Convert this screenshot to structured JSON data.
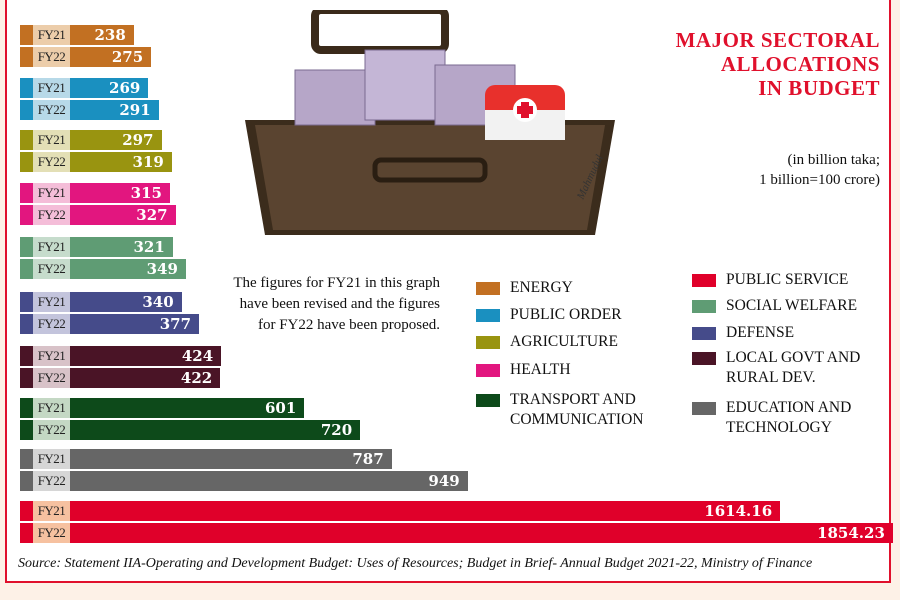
{
  "title": [
    "MAJOR SECTORAL",
    "ALLOCATIONS",
    "IN BUDGET"
  ],
  "units": [
    "(in billion taka;",
    "1 billion=100 crore)"
  ],
  "note": "The figures for FY21 in this graph have been revised and the figures for FY22 have been proposed.",
  "source": "Source:  Statement IIA-Operating and  Development Budget: Uses of Resources; Budget in Brief- Annual Budget 2021-22, Ministry of Finance",
  "artist_signature": "Mahmudul",
  "chart_data": {
    "type": "bar",
    "orientation": "horizontal",
    "title": "MAJOR SECTORAL ALLOCATIONS IN BUDGET",
    "unit": "billion taka",
    "series_labels": [
      "FY21",
      "FY22"
    ],
    "categories": [
      {
        "name": "ENERGY",
        "color": "#c27022",
        "light": "#eccdaa",
        "values": [
          "238",
          "275"
        ]
      },
      {
        "name": "PUBLIC ORDER",
        "color": "#1a90c0",
        "light": "#b7d9e8",
        "values": [
          "269",
          "291"
        ]
      },
      {
        "name": "AGRICULTURE",
        "color": "#999410",
        "light": "#e3dfb6",
        "values": [
          "297",
          "319"
        ]
      },
      {
        "name": "HEALTH",
        "color": "#e2167f",
        "light": "#f4bdd8",
        "values": [
          "315",
          "327"
        ]
      },
      {
        "name": "SOCIAL WELFARE",
        "color": "#5f9c74",
        "light": "#c6dccc",
        "values": [
          "321",
          "349"
        ]
      },
      {
        "name": "DEFENSE",
        "color": "#454b8a",
        "light": "#c3c4dc",
        "values": [
          "340",
          "377"
        ]
      },
      {
        "name": "LOCAL GOVT AND RURAL DEV.",
        "color": "#4a1426",
        "light": "#d8c2c8",
        "values": [
          "424",
          "422"
        ]
      },
      {
        "name": "TRANSPORT AND COMMUNICATION",
        "color": "#0d4a1a",
        "light": "#c4d8c4",
        "values": [
          "601",
          "720"
        ]
      },
      {
        "name": "EDUCATION AND TECHNOLOGY",
        "color": "#666666",
        "light": "#d6d6d6",
        "values": [
          "787",
          "949"
        ]
      },
      {
        "name": "PUBLIC SERVICE",
        "color": "#e0002a",
        "light": "#f6c1a0",
        "values": [
          "1614.16",
          "1854.23"
        ]
      }
    ],
    "legend_left": [
      {
        "label": "ENERGY",
        "color": "#c27022"
      },
      {
        "label": "PUBLIC ORDER",
        "color": "#1a90c0"
      },
      {
        "label": "AGRICULTURE",
        "color": "#999410"
      },
      {
        "label": "HEALTH",
        "color": "#e2167f"
      },
      {
        "label": "TRANSPORT AND COMMUNICATION",
        "color": "#0d4a1a"
      }
    ],
    "legend_right": [
      {
        "label": "PUBLIC SERVICE",
        "color": "#e0002a"
      },
      {
        "label": "SOCIAL WELFARE",
        "color": "#5f9c74"
      },
      {
        "label": "DEFENSE",
        "color": "#454b8a"
      },
      {
        "label": "LOCAL GOVT AND RURAL DEV.",
        "color": "#4a1426"
      },
      {
        "label": "EDUCATION AND TECHNOLOGY",
        "color": "#666666"
      }
    ]
  }
}
